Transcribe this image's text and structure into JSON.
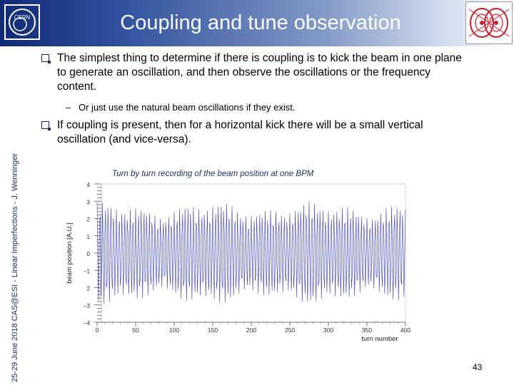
{
  "header": {
    "title": "Coupling and tune observation",
    "colors": {
      "gradient_start": "#0f2a73",
      "gradient_end": "#ffffff",
      "accent": "#1c2f5e"
    },
    "logos": [
      "cern-logo",
      "lhc-logo"
    ]
  },
  "sidebar": {
    "text": "25-29 June 2018        CAS@ESI - Linear Imperfections - J. Wenninger"
  },
  "content": {
    "bullet1": "The simplest thing to determine if there is coupling is to kick the beam in one plane to generate an oscillation, and then observe the oscillations or the frequency content.",
    "sub_bullet1": "Or just use the natural beam oscillations if they exist.",
    "bullet2": "If coupling is present, then for a horizontal kick there will be a small vertical oscillation (and vice-versa).",
    "caption": "Turn by turn recording of the beam position at one BPM"
  },
  "chart_data": {
    "type": "line",
    "xlabel": "turn number",
    "ylabel": "beam position [A.U.]",
    "xlim": [
      0,
      400
    ],
    "ylim": [
      -4,
      4
    ],
    "xticks": [
      "0",
      "50",
      "100",
      "150",
      "200",
      "250",
      "300",
      "350",
      "400"
    ],
    "yticks": [
      "4",
      "3",
      "2",
      "1",
      "0",
      "−1",
      "2",
      "−3",
      "−4"
    ],
    "series": [
      {
        "color": "#3a3fb0",
        "description_values": {
          "turns": [
            0,
            400
          ],
          "envelope_amplitude_approx": 2.5,
          "fractional_tune_approx": 0.28
        }
      }
    ]
  },
  "footer": {
    "page_number": "43"
  }
}
